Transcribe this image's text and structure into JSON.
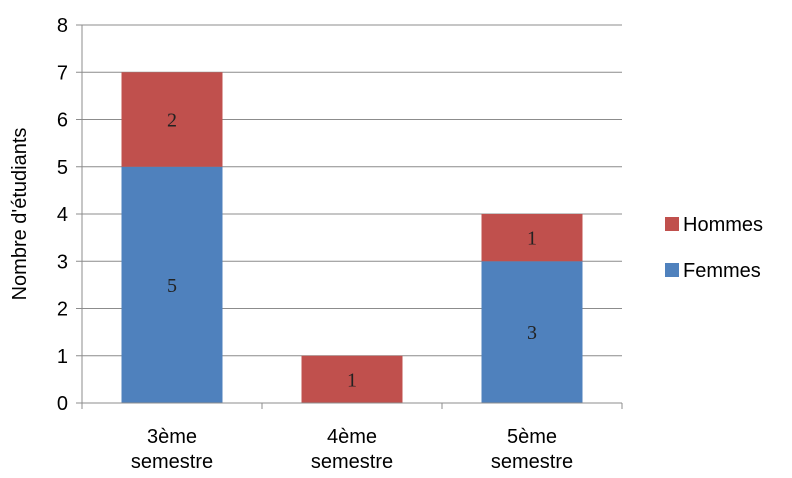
{
  "chart_data": {
    "type": "bar",
    "stacked": true,
    "title": "",
    "xlabel": "",
    "ylabel": "Nombre d'étudiants",
    "ylim": [
      0,
      8
    ],
    "yticks": [
      0,
      1,
      2,
      3,
      4,
      5,
      6,
      7,
      8
    ],
    "grid": true,
    "legend_position": "right",
    "categories": [
      [
        "3ème",
        "semestre"
      ],
      [
        "4ème",
        "semestre"
      ],
      [
        "5ème",
        "semestre"
      ]
    ],
    "series": [
      {
        "name": "Femmes",
        "color": "#4F81BD",
        "values": [
          5,
          0,
          3
        ]
      },
      {
        "name": "Hommes",
        "color": "#C0504D",
        "values": [
          2,
          1,
          1
        ]
      }
    ],
    "legend_order": [
      "Hommes",
      "Femmes"
    ]
  }
}
